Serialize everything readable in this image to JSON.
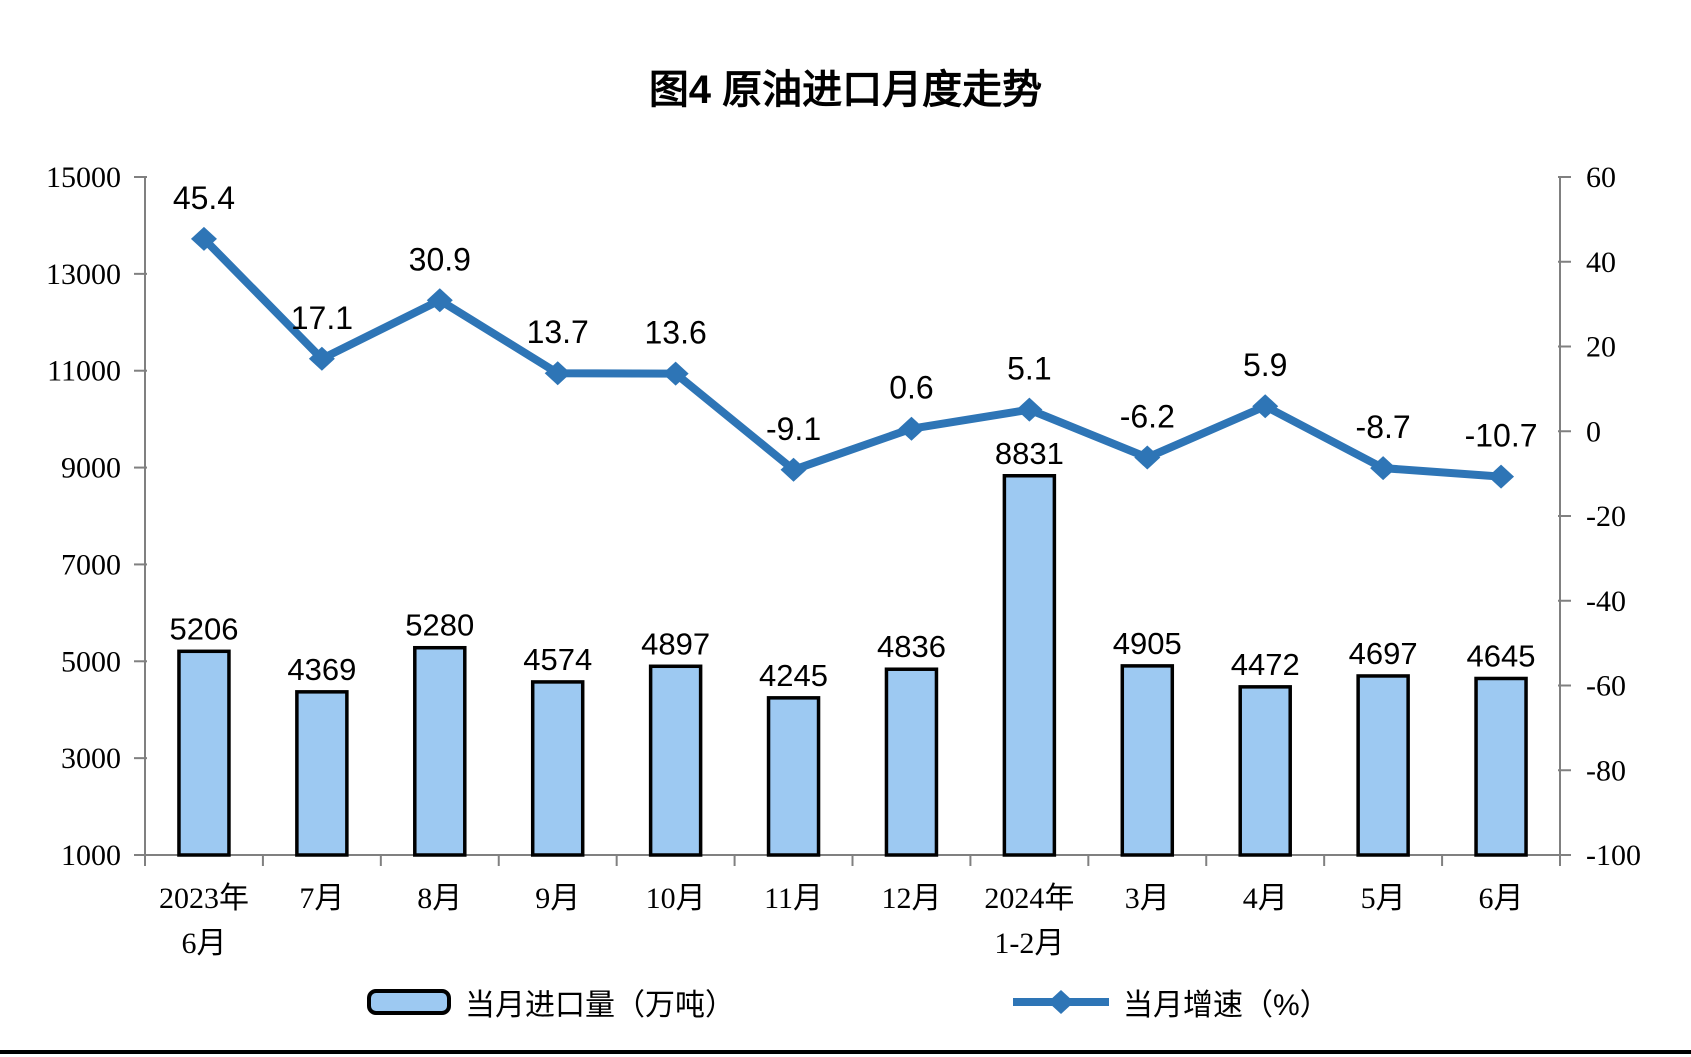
{
  "chart_data": {
    "type": "combo-bar-line",
    "title": "图4 原油进口月度走势",
    "categories": [
      [
        "2023年",
        "6月"
      ],
      [
        "7月"
      ],
      [
        "8月"
      ],
      [
        "9月"
      ],
      [
        "10月"
      ],
      [
        "11月"
      ],
      [
        "12月"
      ],
      [
        "2024年",
        "1-2月"
      ],
      [
        "3月"
      ],
      [
        "4月"
      ],
      [
        "5月"
      ],
      [
        "6月"
      ]
    ],
    "series": [
      {
        "name": "当月进口量（万吨）",
        "type": "bar",
        "axis": "left",
        "values": [
          5206,
          4369,
          5280,
          4574,
          4897,
          4245,
          4836,
          8831,
          4905,
          4472,
          4697,
          4645
        ],
        "color": "#9DC9F2",
        "border_color": "#000000"
      },
      {
        "name": "当月增速（%）",
        "type": "line",
        "axis": "right",
        "values": [
          45.4,
          17.1,
          30.9,
          13.7,
          13.6,
          -9.1,
          0.6,
          5.1,
          -6.2,
          5.9,
          -8.7,
          -10.7
        ],
        "color": "#2E75B6",
        "marker": "diamond"
      }
    ],
    "left_axis": {
      "min": 1000,
      "max": 15000,
      "ticks": [
        15000,
        13000,
        11000,
        9000,
        7000,
        5000,
        3000,
        1000
      ]
    },
    "right_axis": {
      "min": -100,
      "max": 60,
      "ticks": [
        60,
        40,
        20,
        0,
        -20,
        -40,
        -60,
        -80,
        -100
      ]
    },
    "axis_color": "#808080",
    "label_color": "#000000",
    "grid": false,
    "legend_position": "bottom"
  }
}
